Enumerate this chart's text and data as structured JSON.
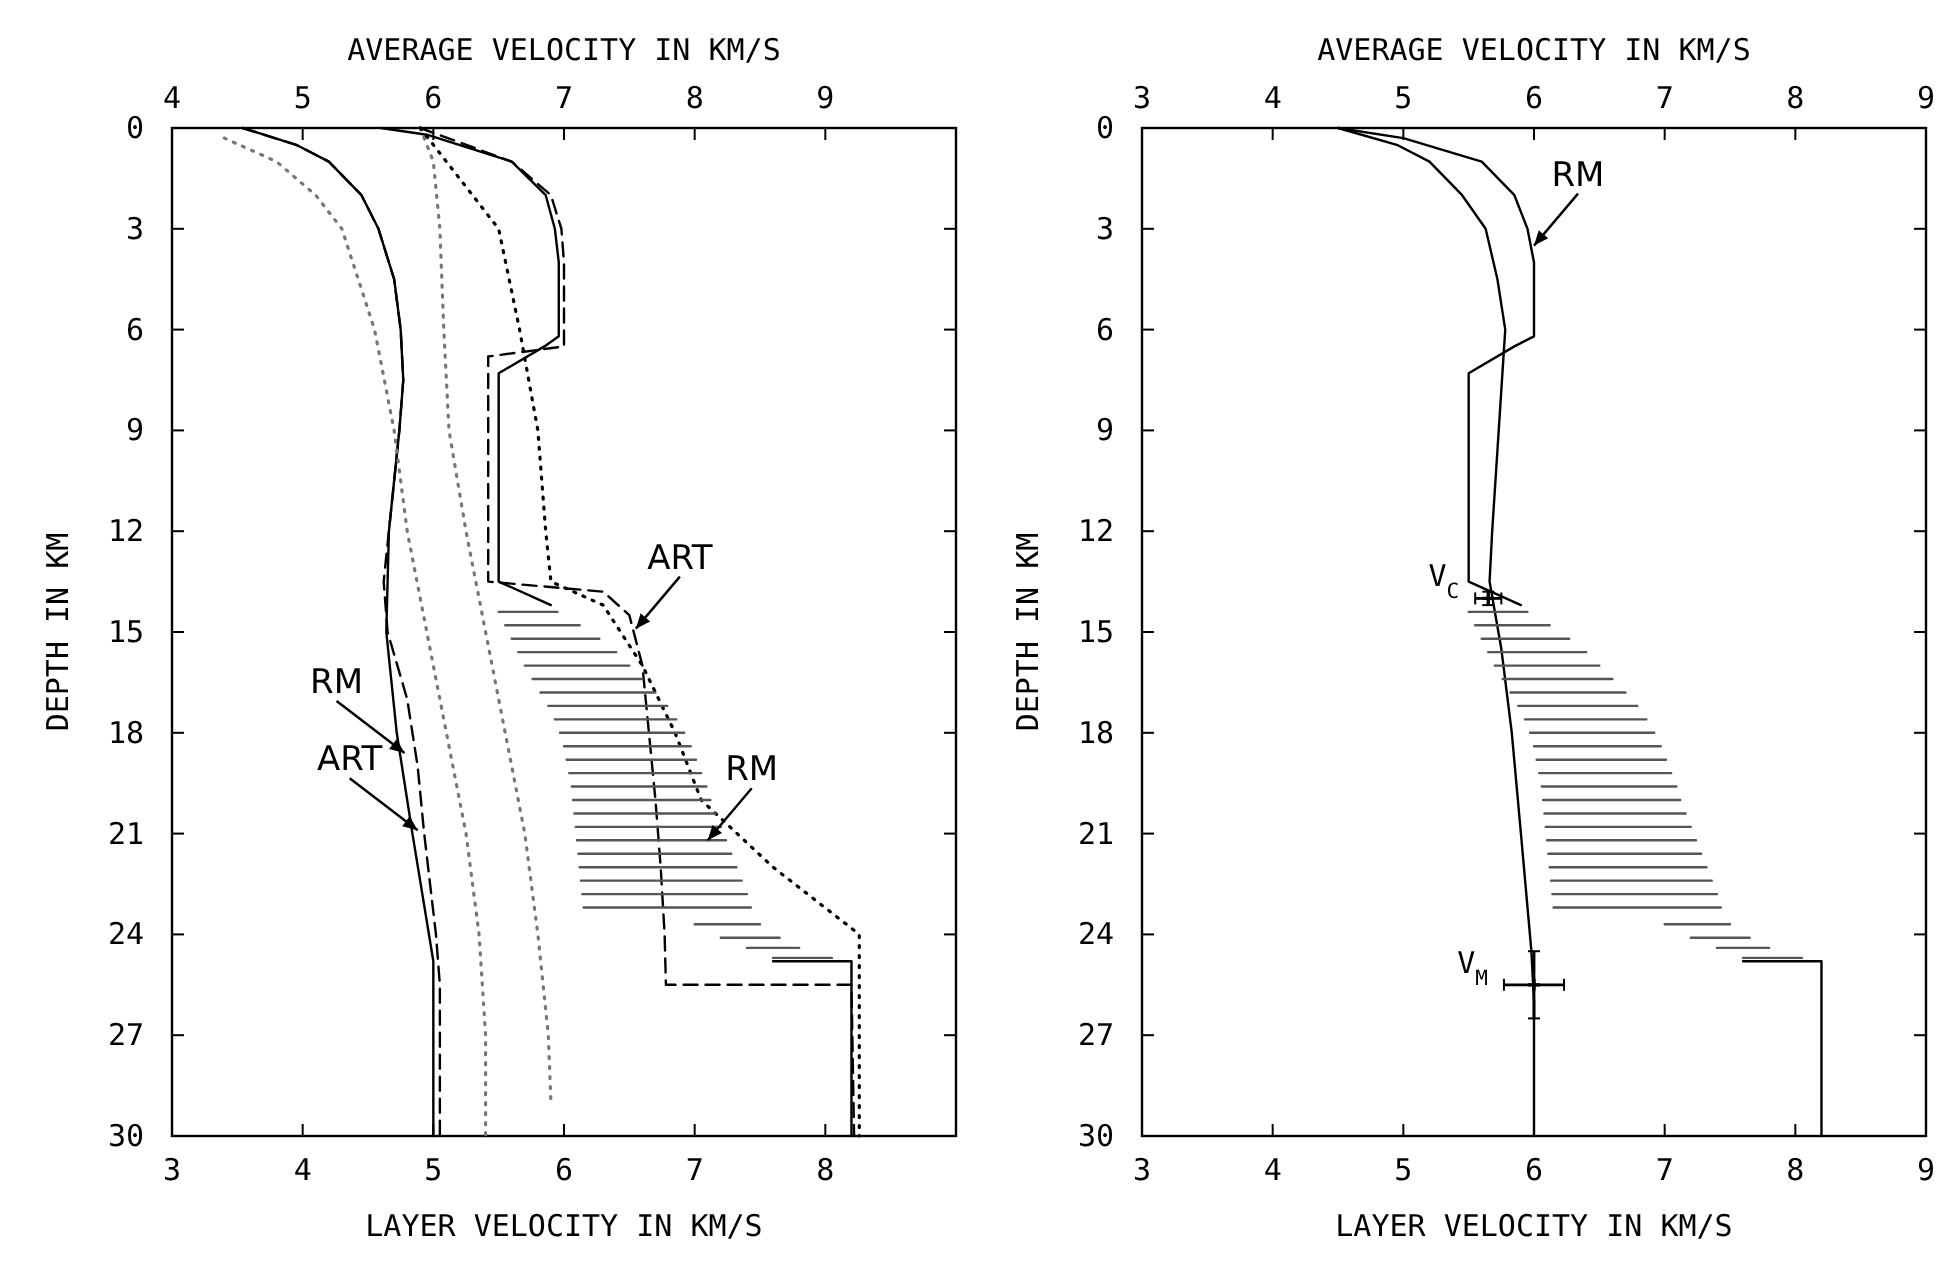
{
  "chart_data": [
    {
      "type": "line",
      "xlabel": "LAYER VELOCITY IN KM/S",
      "x2label": "AVERAGE VELOCITY IN KM/S",
      "ylabel": "DEPTH IN KM",
      "xlim": [
        3,
        9
      ],
      "xticks": [
        3,
        4,
        5,
        6,
        7,
        8
      ],
      "x2lim": [
        4,
        10
      ],
      "x2ticks": [
        4,
        5,
        6,
        7,
        8,
        9
      ],
      "ylim": [
        30,
        0
      ],
      "yticks": [
        0,
        3,
        6,
        9,
        12,
        15,
        18,
        21,
        24,
        27,
        30
      ],
      "series": [
        {
          "axis": "x2",
          "color": "#000000",
          "line_style": "solid",
          "x": [
            4.54,
            4.95,
            5.2,
            5.45,
            5.58,
            5.7,
            5.75,
            5.77,
            5.74,
            5.66,
            5.64,
            5.72,
            5.84,
            6.0,
            6.0
          ],
          "values": [
            0,
            0.5,
            1,
            2,
            3,
            4.5,
            6,
            7.5,
            9,
            12,
            15,
            18,
            21,
            24.8,
            30
          ]
        },
        {
          "axis": "x2",
          "color": "#000000",
          "line_style": "dashed",
          "x": [
            4.54,
            4.95,
            5.2,
            5.45,
            5.58,
            5.7,
            5.75,
            5.77,
            5.74,
            5.66,
            5.62,
            5.65,
            5.8,
            5.88,
            5.93,
            6.02,
            6.05,
            6.05
          ],
          "values": [
            0,
            0.5,
            1,
            2,
            3,
            4.5,
            6,
            7.5,
            9,
            12,
            13.5,
            15,
            17,
            19,
            21,
            24,
            25.5,
            30
          ]
        },
        {
          "axis": "x2",
          "color": "#777777",
          "line_style": "dotted",
          "x": [
            4.4,
            4.8,
            5.1,
            5.3,
            5.55,
            5.7,
            5.8,
            5.95,
            6.1,
            6.25,
            6.35,
            6.4,
            6.4
          ],
          "values": [
            0.3,
            1,
            2,
            3,
            6,
            9,
            12,
            15,
            18,
            21,
            24,
            27,
            30
          ]
        },
        {
          "axis": "x2",
          "color": "#777777",
          "line_style": "dotted",
          "x": [
            5.9,
            6.0,
            6.05,
            6.08,
            6.12,
            6.25,
            6.4,
            6.55,
            6.7,
            6.8,
            6.88,
            6.9
          ],
          "values": [
            0,
            1,
            3,
            6,
            9,
            12,
            15,
            18,
            21,
            24,
            27,
            29
          ]
        },
        {
          "color": "#000000",
          "line_style": "solid",
          "x": [
            4.6,
            4.95,
            5.6,
            5.86,
            5.93,
            5.96,
            5.96,
            5.85,
            5.5,
            5.5,
            5.9,
            null,
            7.6,
            8.2,
            8.2
          ],
          "values": [
            0,
            0.2,
            1,
            2,
            3,
            4,
            6.2,
            6.5,
            7.3,
            13.5,
            14.2,
            null,
            24.8,
            24.8,
            30
          ]
        },
        {
          "color": "#000000",
          "line_style": "dashed",
          "x": [
            4.9,
            5.6,
            5.9,
            5.98,
            6.0,
            6.0,
            5.42,
            5.42,
            6.3,
            6.5,
            6.6,
            6.65,
            6.7,
            6.74,
            6.77,
            6.78,
            8.2,
            8.22
          ],
          "values": [
            0,
            1,
            2,
            3,
            4,
            6.5,
            6.8,
            13.5,
            13.8,
            14.5,
            16,
            18,
            20,
            22,
            24,
            25.5,
            25.5,
            30
          ]
        },
        {
          "color": "#000000",
          "line_style": "dotted",
          "x": [
            4.9,
            5.1,
            5.5,
            5.66,
            5.8,
            5.86,
            5.9,
            6.3,
            6.6,
            6.85,
            7.05,
            7.6,
            8.26,
            8.26
          ],
          "values": [
            0,
            1,
            3,
            6,
            9,
            12,
            13.5,
            14.2,
            16,
            18,
            20,
            22,
            24,
            30
          ]
        },
        {
          "color": "#555555",
          "line_style": "solid",
          "x": [
            5.5,
            5.95,
            null,
            5.55,
            6.12,
            null,
            5.6,
            6.27,
            null,
            5.65,
            6.4,
            null,
            5.7,
            6.5,
            null,
            5.76,
            6.6,
            null,
            5.82,
            6.7,
            null,
            5.88,
            6.79,
            null,
            5.93,
            6.86,
            null,
            5.97,
            6.92,
            null,
            6.0,
            6.97,
            null,
            6.02,
            7.01,
            null,
            6.04,
            7.05,
            null,
            6.06,
            7.09,
            null,
            6.07,
            7.12,
            null,
            6.08,
            7.16,
            null,
            6.09,
            7.2,
            null,
            6.1,
            7.24,
            null,
            6.11,
            7.28,
            null,
            6.12,
            7.32,
            null,
            6.13,
            7.36,
            null,
            6.14,
            7.4,
            null,
            6.15,
            7.43,
            null,
            7.0,
            7.5,
            null,
            7.2,
            7.65,
            null,
            7.4,
            7.8,
            null,
            7.6,
            8.05
          ],
          "values": [
            14.4,
            14.4,
            null,
            14.8,
            14.8,
            null,
            15.2,
            15.2,
            null,
            15.6,
            15.6,
            null,
            16.0,
            16.0,
            null,
            16.4,
            16.4,
            null,
            16.8,
            16.8,
            null,
            17.2,
            17.2,
            null,
            17.6,
            17.6,
            null,
            18.0,
            18.0,
            null,
            18.4,
            18.4,
            null,
            18.8,
            18.8,
            null,
            19.2,
            19.2,
            null,
            19.6,
            19.6,
            null,
            20.0,
            20.0,
            null,
            20.4,
            20.4,
            null,
            20.8,
            20.8,
            null,
            21.2,
            21.2,
            null,
            21.6,
            21.6,
            null,
            22.0,
            22.0,
            null,
            22.4,
            22.4,
            null,
            22.8,
            22.8,
            null,
            23.2,
            23.2,
            null,
            23.7,
            23.7,
            null,
            24.1,
            24.1,
            null,
            24.4,
            24.4,
            null,
            24.7,
            24.7
          ]
        }
      ],
      "annotations": [
        {
          "text": "RM",
          "x": 4.78,
          "y": 18.6
        },
        {
          "text": "ART",
          "x": 4.88,
          "y": 20.9
        },
        {
          "text": "ART",
          "x": 6.55,
          "y": 14.9
        },
        {
          "text": "RM",
          "x": 7.1,
          "y": 21.2
        }
      ]
    },
    {
      "type": "line",
      "xlabel": "LAYER VELOCITY IN KM/S",
      "x2label": "AVERAGE VELOCITY IN KM/S",
      "ylabel": "DEPTH IN KM",
      "xlim": [
        3,
        9
      ],
      "xticks": [
        3,
        4,
        5,
        6,
        7,
        8,
        9
      ],
      "x2lim": [
        3,
        9
      ],
      "x2ticks": [
        3,
        4,
        5,
        6,
        7,
        8,
        9
      ],
      "ylim": [
        30,
        0
      ],
      "yticks": [
        0,
        3,
        6,
        9,
        12,
        15,
        18,
        21,
        24,
        27,
        30
      ],
      "series": [
        {
          "axis": "x2",
          "color": "#000000",
          "line_style": "solid",
          "x": [
            4.5,
            4.95,
            5.2,
            5.45,
            5.63,
            5.72,
            5.78,
            5.73,
            5.68,
            5.66,
            5.75,
            5.83,
            5.9,
            5.98,
            6.0,
            6.0
          ],
          "values": [
            0,
            0.5,
            1,
            2,
            3,
            4.5,
            6,
            9,
            12,
            13.5,
            15.5,
            18,
            21,
            24.5,
            26,
            30
          ]
        },
        {
          "color": "#000000",
          "line_style": "solid",
          "x": [
            4.5,
            5.0,
            5.6,
            5.85,
            5.95,
            6.0,
            6.0,
            5.85,
            5.5,
            5.5,
            5.9,
            null,
            7.6,
            8.2,
            8.2
          ],
          "values": [
            0,
            0.3,
            1,
            2,
            3,
            4,
            6.2,
            6.5,
            7.3,
            13.5,
            14.2,
            null,
            24.8,
            24.8,
            30
          ]
        },
        {
          "color": "#555555",
          "line_style": "solid",
          "x": [
            5.5,
            5.95,
            null,
            5.55,
            6.12,
            null,
            5.6,
            6.27,
            null,
            5.65,
            6.4,
            null,
            5.7,
            6.5,
            null,
            5.76,
            6.6,
            null,
            5.82,
            6.7,
            null,
            5.88,
            6.79,
            null,
            5.93,
            6.86,
            null,
            5.97,
            6.92,
            null,
            6.0,
            6.97,
            null,
            6.02,
            7.01,
            null,
            6.04,
            7.05,
            null,
            6.06,
            7.09,
            null,
            6.07,
            7.12,
            null,
            6.08,
            7.16,
            null,
            6.09,
            7.2,
            null,
            6.1,
            7.24,
            null,
            6.11,
            7.28,
            null,
            6.12,
            7.32,
            null,
            6.13,
            7.36,
            null,
            6.14,
            7.4,
            null,
            6.15,
            7.43,
            null,
            7.0,
            7.5,
            null,
            7.2,
            7.65,
            null,
            7.4,
            7.8,
            null,
            7.6,
            8.05
          ],
          "values": [
            14.4,
            14.4,
            null,
            14.8,
            14.8,
            null,
            15.2,
            15.2,
            null,
            15.6,
            15.6,
            null,
            16.0,
            16.0,
            null,
            16.4,
            16.4,
            null,
            16.8,
            16.8,
            null,
            17.2,
            17.2,
            null,
            17.6,
            17.6,
            null,
            18.0,
            18.0,
            null,
            18.4,
            18.4,
            null,
            18.8,
            18.8,
            null,
            19.2,
            19.2,
            null,
            19.6,
            19.6,
            null,
            20.0,
            20.0,
            null,
            20.4,
            20.4,
            null,
            20.8,
            20.8,
            null,
            21.2,
            21.2,
            null,
            21.6,
            21.6,
            null,
            22.0,
            22.0,
            null,
            22.4,
            22.4,
            null,
            22.8,
            22.8,
            null,
            23.2,
            23.2,
            null,
            23.7,
            23.7,
            null,
            24.1,
            24.1,
            null,
            24.4,
            24.4,
            null,
            24.7,
            24.7
          ]
        },
        {
          "type": "scatter",
          "name": "V$_{C}$",
          "color": "#000000",
          "marker": "cross",
          "x": [
            5.65
          ],
          "values": [
            14.0
          ],
          "errors": [
            0.2
          ],
          "xerrors": [
            0.1
          ]
        },
        {
          "type": "scatter",
          "name": "V$_{M}$",
          "color": "#000000",
          "marker": "cross",
          "x": [
            6.0
          ],
          "values": [
            25.5
          ],
          "errors": [
            1.0
          ],
          "xerrors": [
            0.23
          ]
        }
      ],
      "annotations": [
        {
          "text": "RM",
          "x": 6.0,
          "y": 3.5
        }
      ]
    }
  ]
}
